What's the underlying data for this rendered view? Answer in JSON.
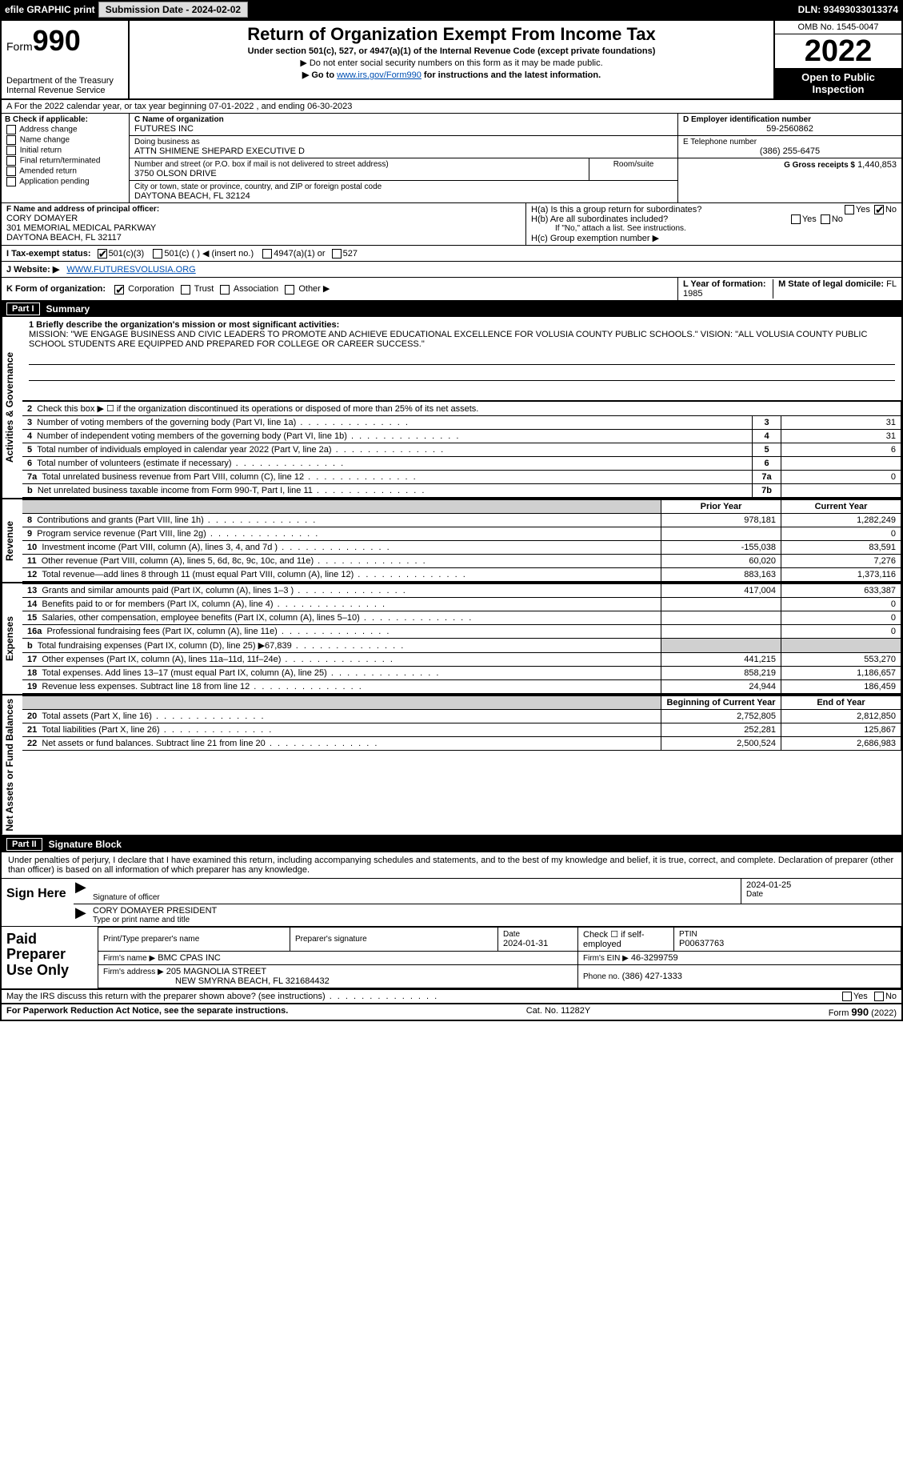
{
  "topbar": {
    "efile": "efile GRAPHIC print",
    "submission_label": "Submission Date - 2024-02-02",
    "dln_label": "DLN: 93493033013374"
  },
  "header": {
    "form_label": "Form",
    "form_number": "990",
    "title": "Return of Organization Exempt From Income Tax",
    "subtitle": "Under section 501(c), 527, or 4947(a)(1) of the Internal Revenue Code (except private foundations)",
    "note1": "▶ Do not enter social security numbers on this form as it may be made public.",
    "note2_prefix": "▶ Go to ",
    "note2_link": "www.irs.gov/Form990",
    "note2_suffix": " for instructions and the latest information.",
    "dept": "Department of the Treasury",
    "irs": "Internal Revenue Service",
    "omb": "OMB No. 1545-0047",
    "year": "2022",
    "open": "Open to Public Inspection"
  },
  "row_a": "A For the 2022 calendar year, or tax year beginning 07-01-2022    , and ending 06-30-2023",
  "col_b": {
    "header": "B Check if applicable:",
    "items": [
      "Address change",
      "Name change",
      "Initial return",
      "Final return/terminated",
      "Amended return",
      "Application pending"
    ]
  },
  "col_c": {
    "name_label": "C Name of organization",
    "name": "FUTURES INC",
    "dba_label": "Doing business as",
    "dba": "ATTN SHIMENE SHEPARD EXECUTIVE D",
    "addr_label": "Number and street (or P.O. box if mail is not delivered to street address)",
    "room_label": "Room/suite",
    "addr": "3750 OLSON DRIVE",
    "city_label": "City or town, state or province, country, and ZIP or foreign postal code",
    "city": "DAYTONA BEACH, FL  32124"
  },
  "col_de": {
    "d_label": "D Employer identification number",
    "d_val": "59-2560862",
    "e_label": "E Telephone number",
    "e_val": "(386) 255-6475",
    "g_label": "G Gross receipts $",
    "g_val": "1,440,853"
  },
  "col_f": {
    "label": "F  Name and address of principal officer:",
    "name": "CORY DOMAYER",
    "addr1": "301 MEMORIAL MEDICAL PARKWAY",
    "addr2": "DAYTONA BEACH, FL  32117"
  },
  "col_h": {
    "ha": "H(a)  Is this a group return for subordinates?",
    "hb": "H(b)  Are all subordinates included?",
    "hb_note": "If \"No,\" attach a list. See instructions.",
    "hc": "H(c)  Group exemption number ▶",
    "yes": "Yes",
    "no": "No"
  },
  "row_i": {
    "label": "I   Tax-exempt status:",
    "opt1": "501(c)(3)",
    "opt2": "501(c) (   ) ◀ (insert no.)",
    "opt3": "4947(a)(1) or",
    "opt4": "527"
  },
  "row_j": {
    "label": "J   Website: ▶",
    "val": "WWW.FUTURESVOLUSIA.ORG"
  },
  "row_k": {
    "label": "K Form of organization:",
    "opts": [
      "Corporation",
      "Trust",
      "Association",
      "Other ▶"
    ],
    "l_label": "L Year of formation:",
    "l_val": "1985",
    "m_label": "M State of legal domicile:",
    "m_val": "FL"
  },
  "parts": {
    "p1": "Part I",
    "p1_title": "Summary",
    "p2": "Part II",
    "p2_title": "Signature Block"
  },
  "side_tabs": {
    "gov": "Activities & Governance",
    "rev": "Revenue",
    "exp": "Expenses",
    "net": "Net Assets or Fund Balances"
  },
  "mission": {
    "label": "1  Briefly describe the organization's mission or most significant activities:",
    "text": "MISSION: \"WE ENGAGE BUSINESS AND CIVIC LEADERS TO PROMOTE AND ACHIEVE EDUCATIONAL EXCELLENCE FOR VOLUSIA COUNTY PUBLIC SCHOOLS.\" VISION: \"ALL VOLUSIA COUNTY PUBLIC SCHOOL STUDENTS ARE EQUIPPED AND PREPARED FOR COLLEGE OR CAREER SUCCESS.\""
  },
  "gov_rows": [
    {
      "n": "2",
      "desc": "Check this box ▶ ☐  if the organization discontinued its operations or disposed of more than 25% of its net assets.",
      "num": "",
      "val": ""
    },
    {
      "n": "3",
      "desc": "Number of voting members of the governing body (Part VI, line 1a)",
      "num": "3",
      "val": "31"
    },
    {
      "n": "4",
      "desc": "Number of independent voting members of the governing body (Part VI, line 1b)",
      "num": "4",
      "val": "31"
    },
    {
      "n": "5",
      "desc": "Total number of individuals employed in calendar year 2022 (Part V, line 2a)",
      "num": "5",
      "val": "6"
    },
    {
      "n": "6",
      "desc": "Total number of volunteers (estimate if necessary)",
      "num": "6",
      "val": ""
    },
    {
      "n": "7a",
      "desc": "Total unrelated business revenue from Part VIII, column (C), line 12",
      "num": "7a",
      "val": "0"
    },
    {
      "n": "b",
      "desc": "Net unrelated business taxable income from Form 990-T, Part I, line 11",
      "num": "7b",
      "val": ""
    }
  ],
  "year_hdr": {
    "prior": "Prior Year",
    "current": "Current Year"
  },
  "rev_rows": [
    {
      "n": "8",
      "desc": "Contributions and grants (Part VIII, line 1h)",
      "p": "978,181",
      "c": "1,282,249"
    },
    {
      "n": "9",
      "desc": "Program service revenue (Part VIII, line 2g)",
      "p": "",
      "c": "0"
    },
    {
      "n": "10",
      "desc": "Investment income (Part VIII, column (A), lines 3, 4, and 7d )",
      "p": "-155,038",
      "c": "83,591"
    },
    {
      "n": "11",
      "desc": "Other revenue (Part VIII, column (A), lines 5, 6d, 8c, 9c, 10c, and 11e)",
      "p": "60,020",
      "c": "7,276"
    },
    {
      "n": "12",
      "desc": "Total revenue—add lines 8 through 11 (must equal Part VIII, column (A), line 12)",
      "p": "883,163",
      "c": "1,373,116"
    }
  ],
  "exp_rows": [
    {
      "n": "13",
      "desc": "Grants and similar amounts paid (Part IX, column (A), lines 1–3 )",
      "p": "417,004",
      "c": "633,387"
    },
    {
      "n": "14",
      "desc": "Benefits paid to or for members (Part IX, column (A), line 4)",
      "p": "",
      "c": "0"
    },
    {
      "n": "15",
      "desc": "Salaries, other compensation, employee benefits (Part IX, column (A), lines 5–10)",
      "p": "",
      "c": "0"
    },
    {
      "n": "16a",
      "desc": "Professional fundraising fees (Part IX, column (A), line 11e)",
      "p": "",
      "c": "0"
    },
    {
      "n": "b",
      "desc": "Total fundraising expenses (Part IX, column (D), line 25) ▶67,839",
      "p": "shade",
      "c": "shade"
    },
    {
      "n": "17",
      "desc": "Other expenses (Part IX, column (A), lines 11a–11d, 11f–24e)",
      "p": "441,215",
      "c": "553,270"
    },
    {
      "n": "18",
      "desc": "Total expenses. Add lines 13–17 (must equal Part IX, column (A), line 25)",
      "p": "858,219",
      "c": "1,186,657"
    },
    {
      "n": "19",
      "desc": "Revenue less expenses. Subtract line 18 from line 12",
      "p": "24,944",
      "c": "186,459"
    }
  ],
  "net_hdr": {
    "b": "Beginning of Current Year",
    "e": "End of Year"
  },
  "net_rows": [
    {
      "n": "20",
      "desc": "Total assets (Part X, line 16)",
      "p": "2,752,805",
      "c": "2,812,850"
    },
    {
      "n": "21",
      "desc": "Total liabilities (Part X, line 26)",
      "p": "252,281",
      "c": "125,867"
    },
    {
      "n": "22",
      "desc": "Net assets or fund balances. Subtract line 21 from line 20",
      "p": "2,500,524",
      "c": "2,686,983"
    }
  ],
  "sig": {
    "intro": "Under penalties of perjury, I declare that I have examined this return, including accompanying schedules and statements, and to the best of my knowledge and belief, it is true, correct, and complete. Declaration of preparer (other than officer) is based on all information of which preparer has any knowledge.",
    "sign_here": "Sign Here",
    "sig_officer": "Signature of officer",
    "date_val": "2024-01-25",
    "date_lbl": "Date",
    "name": "CORY DOMAYER  PRESIDENT",
    "name_lbl": "Type or print name and title"
  },
  "paid": {
    "title": "Paid Preparer Use Only",
    "h1": "Print/Type preparer's name",
    "h2": "Preparer's signature",
    "h3": "Date",
    "h3v": "2024-01-31",
    "h4": "Check ☐ if self-employed",
    "h5": "PTIN",
    "h5v": "P00637763",
    "firm_lbl": "Firm's name    ▶",
    "firm": "BMC CPAS INC",
    "ein_lbl": "Firm's EIN ▶",
    "ein": "46-3299759",
    "addr_lbl": "Firm's address ▶",
    "addr1": "205 MAGNOLIA STREET",
    "addr2": "NEW SMYRNA BEACH, FL  321684432",
    "phone_lbl": "Phone no.",
    "phone": "(386) 427-1333"
  },
  "footer": {
    "discuss": "May the IRS discuss this return with the preparer shown above? (see instructions)",
    "yes": "Yes",
    "no": "No",
    "pra": "For Paperwork Reduction Act Notice, see the separate instructions.",
    "cat": "Cat. No. 11282Y",
    "form": "Form 990 (2022)"
  }
}
